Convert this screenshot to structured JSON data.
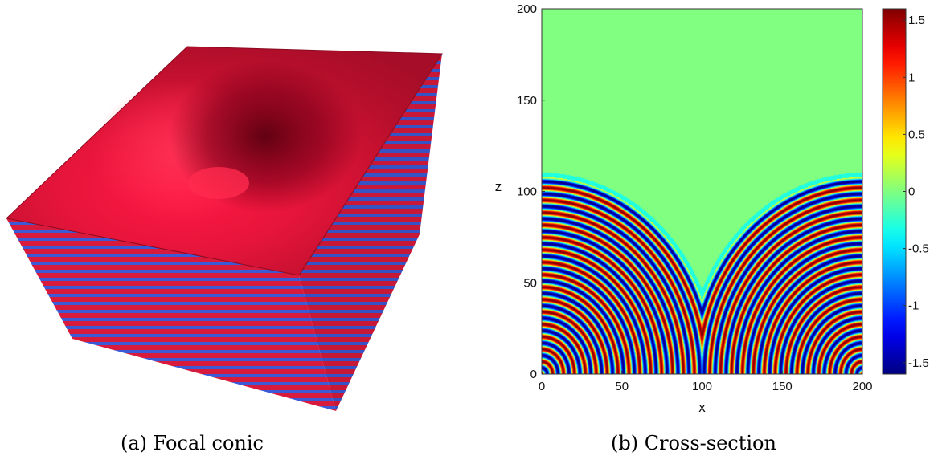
{
  "captions": {
    "a": "(a) Focal conic",
    "b": "(b) Cross-section"
  },
  "panel_a": {
    "top_colors": {
      "light": "#ff1744",
      "mid": "#c8102e",
      "dark": "#6e0014"
    },
    "stripe_colors": [
      "#d81b3c",
      "#3b5bd6"
    ]
  },
  "chart_data": {
    "type": "heatmap",
    "title": "",
    "xlabel": "x",
    "ylabel": "z",
    "xlim": [
      0,
      200
    ],
    "ylim": [
      0,
      200
    ],
    "x_ticks": [
      0,
      50,
      100,
      150,
      200
    ],
    "y_ticks": [
      0,
      50,
      100,
      150,
      200
    ],
    "colorbar": {
      "range": [
        -1.6,
        1.6
      ],
      "ticks": [
        "1.5",
        "1",
        "0.5",
        "0",
        "-0.5",
        "-1",
        "-1.5"
      ],
      "tick_values": [
        1.5,
        1,
        0.5,
        0,
        -0.5,
        -1,
        -1.5
      ],
      "colormap": "jet"
    },
    "field": {
      "background_value": 0,
      "interface_z_at_edges": 109,
      "cusp": {
        "x": 100,
        "z": 45
      },
      "focal_points_x": [
        0,
        100,
        200
      ],
      "amplitude": 1.6,
      "layer_period": 6.8
    }
  }
}
